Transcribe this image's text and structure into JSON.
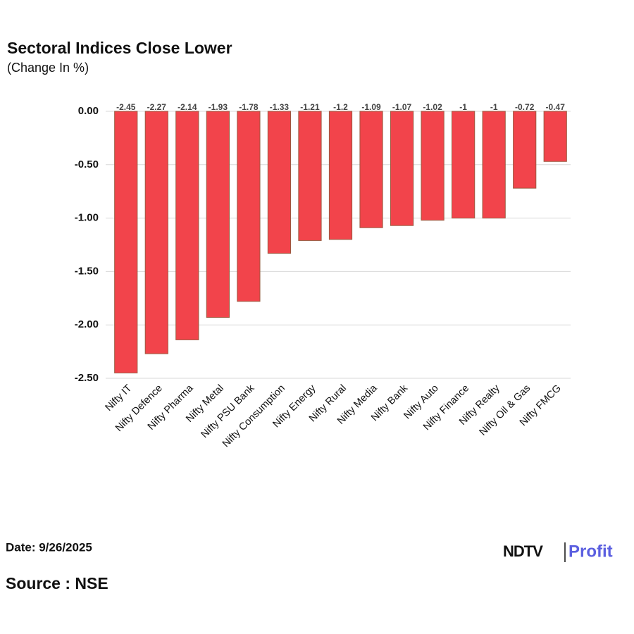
{
  "chart_data": {
    "type": "bar",
    "title": "Sectoral Indices Close Lower",
    "subtitle": "(Change In %)",
    "categories": [
      "Nifty IT",
      "Nifty Defence",
      "Nifty Pharma",
      "Nifty Metal",
      "Nifty PSU Bank",
      "Nifty Consumption",
      "Nifty Energy",
      "Nifty Rural",
      "Nifty Media",
      "Nifty Bank",
      "Nifty Auto",
      "Nifty Finance",
      "Nifty Realty",
      "Nifty Oil & Gas",
      "Nifty FMCG"
    ],
    "values": [
      -2.45,
      -2.27,
      -2.14,
      -1.93,
      -1.78,
      -1.33,
      -1.21,
      -1.2,
      -1.09,
      -1.07,
      -1.02,
      -1,
      -1,
      -0.72,
      -0.47
    ],
    "color": "#f2444b",
    "ylim": [
      -2.5,
      0
    ],
    "yticks": [
      {
        "value": 0,
        "label": "0.00"
      },
      {
        "value": -0.5,
        "label": "-0.50"
      },
      {
        "value": -1,
        "label": "-1.00"
      },
      {
        "value": -1.5,
        "label": "-1.50"
      },
      {
        "value": -2,
        "label": "-2.00"
      },
      {
        "value": -2.5,
        "label": "-2.50"
      }
    ],
    "grid": true
  },
  "date": "Date: 9/26/2025",
  "source": "Source : NSE",
  "logo": {
    "brand": "NDTV",
    "product": "Profit"
  }
}
